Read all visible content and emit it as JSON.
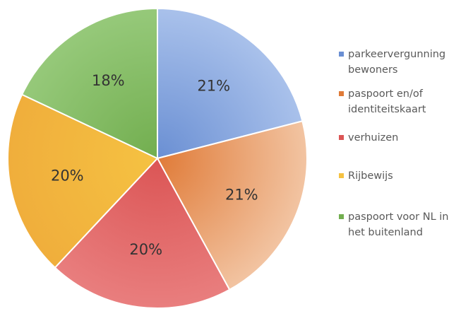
{
  "chart_data": {
    "type": "pie",
    "slices": [
      {
        "label": "parkeervergunning bewoners",
        "label_lines": [
          "parkeervergunning",
          "bewoners"
        ],
        "value": 21,
        "display": "21%",
        "color": "#6A8FD3",
        "color_light": "#A9C1EB"
      },
      {
        "label": "paspoort en/of identiteitskaart",
        "label_lines": [
          "paspoort en/of",
          "identiteitskaart"
        ],
        "value": 21,
        "display": "21%",
        "color": "#E07B38",
        "color_light": "#F2C4A2"
      },
      {
        "label": "verhuizen",
        "label_lines": [
          "verhuizen"
        ],
        "value": 20,
        "display": "20%",
        "color": "#DB5555",
        "color_light": "#E97E7E"
      },
      {
        "label": "Rijbewijs",
        "label_lines": [
          "Rijbewijs"
        ],
        "value": 20,
        "display": "20%",
        "color": "#F5C242",
        "color_light": "#F0AE3C"
      },
      {
        "label": "paspoort voor NL in het buitenland",
        "label_lines": [
          "paspoort voor NL in",
          "het buitenland"
        ],
        "value": 18,
        "display": "18%",
        "color": "#72AE4F",
        "color_light": "#96C97A"
      }
    ],
    "legend_position": "right",
    "start_angle_deg": 0,
    "direction": "clockwise"
  }
}
